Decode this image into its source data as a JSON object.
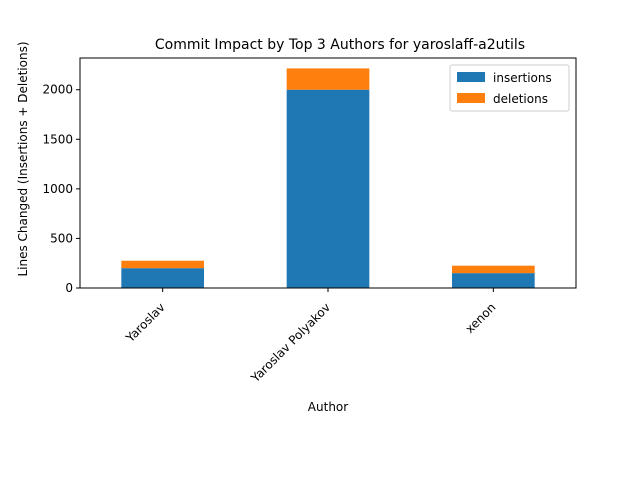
{
  "chart_data": {
    "type": "bar",
    "stacked": true,
    "title": "Commit Impact by Top 3 Authors for yaroslaff-a2utils",
    "xlabel": "Author",
    "ylabel": "Lines Changed (Insertions + Deletions)",
    "categories": [
      "Yaroslav",
      "Yaroslav Polyakov",
      "xenon"
    ],
    "series": [
      {
        "name": "insertions",
        "color": "#1f77b4",
        "values": [
          200,
          2000,
          150
        ]
      },
      {
        "name": "deletions",
        "color": "#ff7f0e",
        "values": [
          75,
          215,
          75
        ]
      }
    ],
    "ylim": [
      0,
      2320
    ],
    "yticks": [
      0,
      500,
      1000,
      1500,
      2000
    ],
    "grid": false,
    "legend_position": "top-right"
  }
}
